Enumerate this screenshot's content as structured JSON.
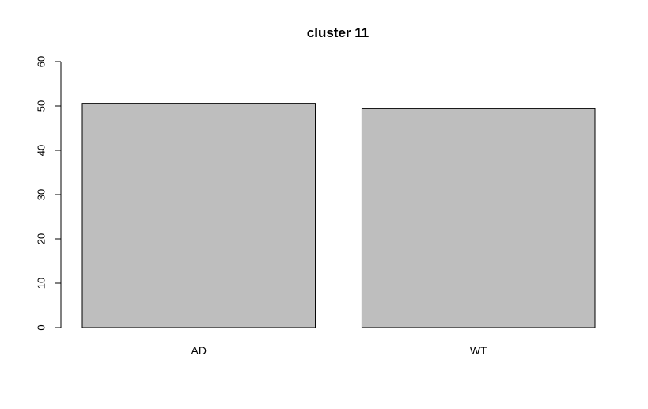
{
  "chart_data": {
    "type": "bar",
    "title": "cluster 11",
    "xlabel": "",
    "ylabel": "",
    "categories": [
      "AD",
      "WT"
    ],
    "values": [
      50.6,
      49.4
    ],
    "ylim": [
      0,
      60
    ],
    "yticks": [
      0,
      10,
      20,
      30,
      40,
      50,
      60
    ],
    "grid": false,
    "legend": "none",
    "bar_color": "#bebebe",
    "bar_edge_color": "#000000"
  }
}
